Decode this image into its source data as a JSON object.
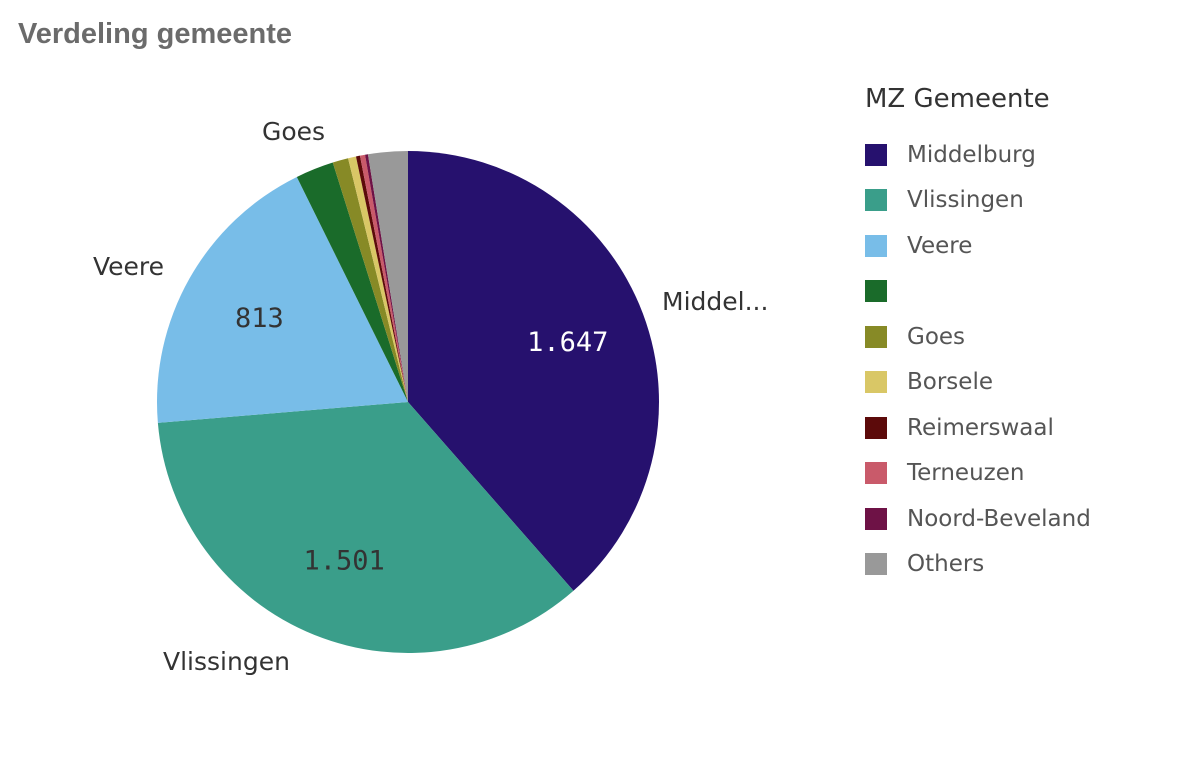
{
  "chart_data": {
    "type": "pie",
    "title": "Verdeling gemeente",
    "legend_title": "MZ Gemeente",
    "legend_position": "right",
    "slices": [
      {
        "name": "Middelburg",
        "value": 1647,
        "color": "#26116e",
        "label": "Middel...",
        "data_label": "1.647",
        "label_color": "#ffffff"
      },
      {
        "name": "Vlissingen",
        "value": 1501,
        "color": "#3a9e8a",
        "label": "Vlissingen",
        "data_label": "1.501",
        "label_color": "#333333"
      },
      {
        "name": "Veere",
        "value": 813,
        "color": "#78bde8",
        "label": "Veere",
        "data_label": "813",
        "label_color": "#333333"
      },
      {
        "name": "",
        "value": 105,
        "color": "#1a6b2a",
        "label": "",
        "data_label": ""
      },
      {
        "name": "Goes",
        "value": 43,
        "color": "#878a26",
        "label": "Goes",
        "data_label": ""
      },
      {
        "name": "Borsele",
        "value": 22,
        "color": "#d9c766",
        "label": "",
        "data_label": ""
      },
      {
        "name": "Reimerswaal",
        "value": 11,
        "color": "#5c0a0a",
        "label": "",
        "data_label": ""
      },
      {
        "name": "Terneuzen",
        "value": 14,
        "color": "#c95a6a",
        "label": "",
        "data_label": ""
      },
      {
        "name": "Noord-Beveland",
        "value": 8,
        "color": "#6e1246",
        "label": "",
        "data_label": ""
      },
      {
        "name": "Others",
        "value": 109,
        "color": "#999999",
        "label": "",
        "data_label": ""
      }
    ]
  }
}
